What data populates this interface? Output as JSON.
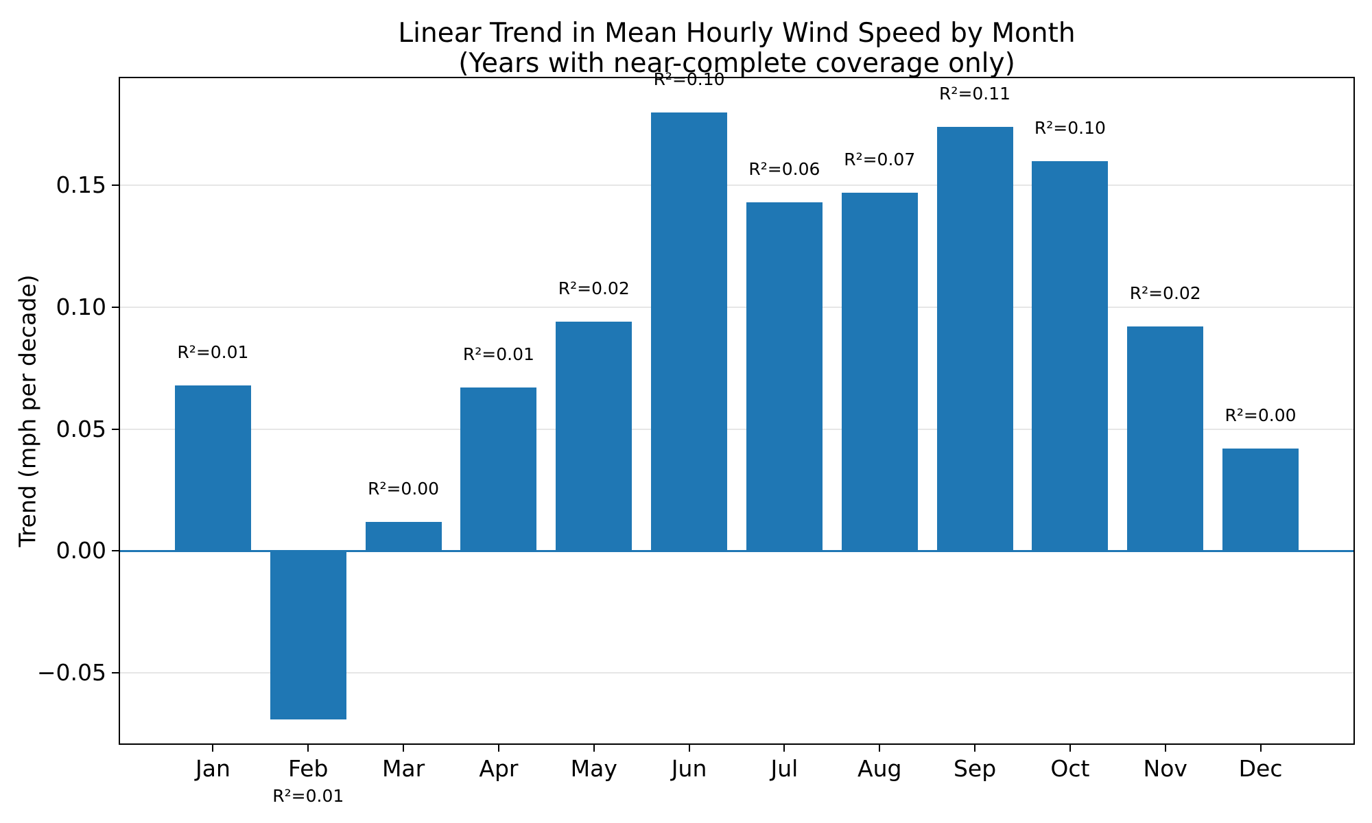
{
  "title": {
    "line1": "Linear Trend in Mean Hourly Wind Speed by Month",
    "line2": "(Years with near-complete coverage only)"
  },
  "chart_data": {
    "type": "bar",
    "categories": [
      "Jan",
      "Feb",
      "Mar",
      "Apr",
      "May",
      "Jun",
      "Jul",
      "Aug",
      "Sep",
      "Oct",
      "Nov",
      "Dec"
    ],
    "values": [
      0.068,
      -0.069,
      0.012,
      0.067,
      0.094,
      0.18,
      0.143,
      0.147,
      0.174,
      0.16,
      0.092,
      0.042
    ],
    "annotations": [
      "R²=0.01",
      "R²=0.01",
      "R²=0.00",
      "R²=0.01",
      "R²=0.02",
      "R²=0.10",
      "R²=0.06",
      "R²=0.07",
      "R²=0.11",
      "R²=0.10",
      "R²=0.02",
      "R²=0.00"
    ],
    "title": "Linear Trend in Mean Hourly Wind Speed by Month (Years with near-complete coverage only)",
    "xlabel": "",
    "ylabel": "Trend (mph per decade)",
    "yticks": [
      {
        "label": "0.15",
        "value": 0.15
      },
      {
        "label": "0.10",
        "value": 0.1
      },
      {
        "label": "0.05",
        "value": 0.05
      },
      {
        "label": "0.00",
        "value": 0.0
      },
      {
        "label": "−0.05",
        "value": -0.05
      }
    ],
    "ylim": [
      -0.0795,
      0.1945
    ],
    "grid": true,
    "legend_position": "none",
    "bar_color": "#1f77b4",
    "zero_line_color": "#1f77b4",
    "grid_color": "#e6e6e6",
    "axis_color": "#000000",
    "background_color": "#ffffff"
  }
}
